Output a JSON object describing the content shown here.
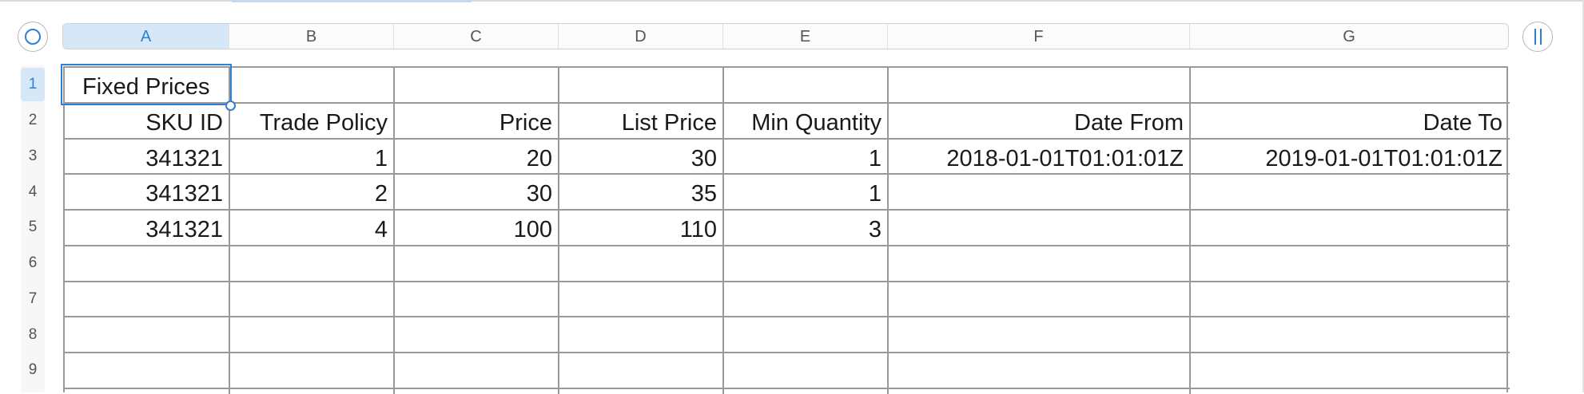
{
  "toolbar": {
    "left_icon": "circle-select-icon",
    "right_icon": "pause-columns-icon"
  },
  "columns": [
    "A",
    "B",
    "C",
    "D",
    "E",
    "F",
    "G"
  ],
  "selected_column": "A",
  "rows": [
    "1",
    "2",
    "3",
    "4",
    "5",
    "6",
    "7",
    "8",
    "9"
  ],
  "selected_row": "1",
  "title_cell": "Fixed Prices",
  "table": {
    "headers": [
      "SKU ID",
      "Trade Policy",
      "Price",
      "List Price",
      "Min Quantity",
      "Date From",
      "Date To"
    ],
    "data": [
      [
        "341321",
        "1",
        "20",
        "30",
        "1",
        "2018-01-01T01:01:01Z",
        "2019-01-01T01:01:01Z"
      ],
      [
        "341321",
        "2",
        "30",
        "35",
        "1",
        "",
        ""
      ],
      [
        "341321",
        "4",
        "100",
        "110",
        "3",
        "",
        ""
      ]
    ]
  },
  "colors": {
    "accent": "#2f7fd4",
    "selection_fill": "#d6e7f8",
    "gridline": "#9a9a9a"
  }
}
